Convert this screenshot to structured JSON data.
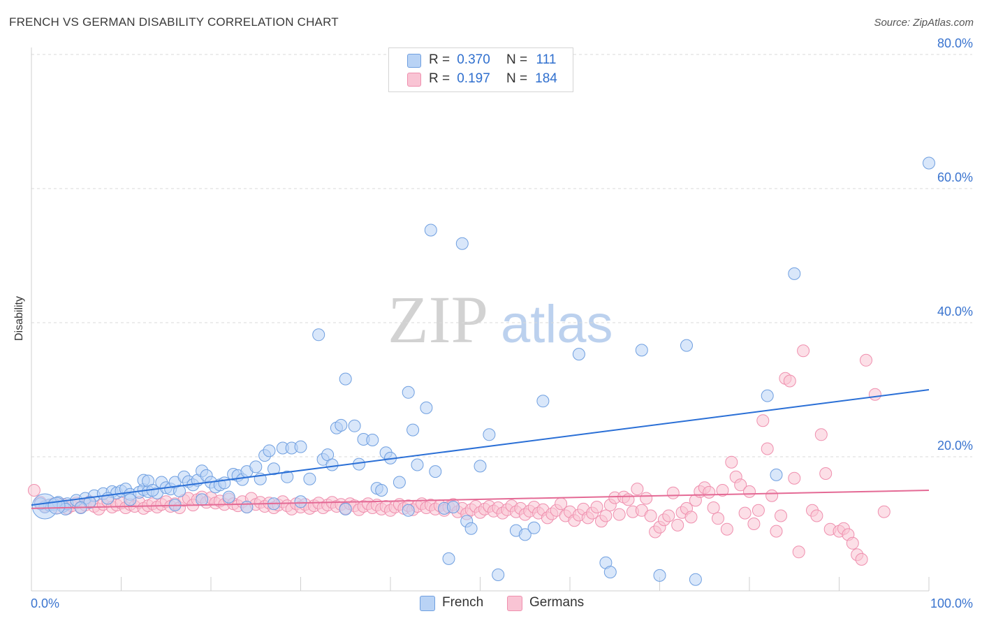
{
  "title": "FRENCH VS GERMAN DISABILITY CORRELATION CHART",
  "source": "Source: ZipAtlas.com",
  "watermark": {
    "zip": "ZIP",
    "atlas": "atlas"
  },
  "colors": {
    "french_fill": "#b9d3f5",
    "french_stroke": "#6f9fe0",
    "french_line": "#2a6fd6",
    "german_fill": "#f9c4d4",
    "german_stroke": "#ef8fae",
    "german_line": "#e46a95",
    "tick_label": "#3a74cf",
    "grid": "#d9d9d9"
  },
  "legend": {
    "r_label": "R =",
    "n_label": "N =",
    "items": [
      {
        "name": "French",
        "r": "0.370",
        "n": "111",
        "swatch": "#b9d3f5",
        "border": "#6f9fe0"
      },
      {
        "name": "Germans",
        "r": "0.197",
        "n": "184",
        "swatch": "#f9c4d4",
        "border": "#ef8fae"
      }
    ]
  },
  "chart_data": {
    "type": "scatter",
    "title": "FRENCH VS GERMAN DISABILITY CORRELATION CHART",
    "xlabel": "",
    "ylabel": "Disability",
    "xlim": [
      0,
      100
    ],
    "ylim": [
      0,
      80
    ],
    "x_tick_labels": [
      "0.0%",
      "100.0%"
    ],
    "y_ticks": [
      20,
      40,
      60,
      80
    ],
    "y_tick_labels": [
      "20.0%",
      "40.0%",
      "60.0%",
      "80.0%"
    ],
    "grid": "horizontal dashed",
    "legend_position": "top-center",
    "series": [
      {
        "name": "French",
        "r": 0.37,
        "n": 111,
        "trend": {
          "x": [
            0,
            100
          ],
          "y": [
            12.8,
            30.0
          ]
        },
        "points": [
          [
            1.5,
            12.5
          ],
          [
            2,
            12.8
          ],
          [
            2.5,
            12.9
          ],
          [
            3,
            13.2
          ],
          [
            3.5,
            12.6
          ],
          [
            4,
            13.0
          ],
          [
            5,
            13.5
          ],
          [
            6,
            13.8
          ],
          [
            7,
            14.2
          ],
          [
            8,
            14.5
          ],
          [
            9,
            14.8
          ],
          [
            9.5,
            14.6
          ],
          [
            10,
            14.9
          ],
          [
            10.5,
            15.2
          ],
          [
            11,
            14.4
          ],
          [
            12,
            14.7
          ],
          [
            12.5,
            15.1
          ],
          [
            13,
            14.8
          ],
          [
            14,
            14.6
          ],
          [
            12.5,
            16.5
          ],
          [
            13,
            16.4
          ],
          [
            13.5,
            15.0
          ],
          [
            14.5,
            16.2
          ],
          [
            15,
            15.4
          ],
          [
            15.5,
            15.2
          ],
          [
            16,
            16.2
          ],
          [
            16.5,
            14.9
          ],
          [
            17,
            17.0
          ],
          [
            17.5,
            16.3
          ],
          [
            18,
            15.8
          ],
          [
            18.5,
            16.5
          ],
          [
            19,
            17.9
          ],
          [
            19.5,
            17.2
          ],
          [
            20,
            16.2
          ],
          [
            20.5,
            15.5
          ],
          [
            21,
            15.8
          ],
          [
            21.5,
            16.1
          ],
          [
            22.5,
            17.4
          ],
          [
            23,
            17.2
          ],
          [
            23.5,
            16.6
          ],
          [
            24,
            17.8
          ],
          [
            25,
            18.5
          ],
          [
            25.5,
            16.7
          ],
          [
            26,
            20.2
          ],
          [
            26.5,
            20.9
          ],
          [
            27,
            18.2
          ],
          [
            28,
            21.3
          ],
          [
            28.5,
            17.0
          ],
          [
            29,
            21.3
          ],
          [
            30,
            21.5
          ],
          [
            31,
            16.7
          ],
          [
            32,
            38.2
          ],
          [
            32.5,
            19.6
          ],
          [
            33,
            20.3
          ],
          [
            33.5,
            18.8
          ],
          [
            34,
            24.3
          ],
          [
            34.5,
            24.7
          ],
          [
            35,
            31.6
          ],
          [
            36,
            24.6
          ],
          [
            36.5,
            18.9
          ],
          [
            37,
            22.6
          ],
          [
            38,
            22.5
          ],
          [
            38.5,
            15.3
          ],
          [
            39,
            15.0
          ],
          [
            39.5,
            20.6
          ],
          [
            40,
            19.8
          ],
          [
            41,
            16.2
          ],
          [
            42,
            29.6
          ],
          [
            42.5,
            24.0
          ],
          [
            43,
            18.8
          ],
          [
            44,
            27.3
          ],
          [
            44.5,
            53.8
          ],
          [
            45,
            17.8
          ],
          [
            46,
            12.3
          ],
          [
            47,
            12.5
          ],
          [
            48,
            51.8
          ],
          [
            48.5,
            10.4
          ],
          [
            49,
            9.3
          ],
          [
            50,
            18.6
          ],
          [
            51,
            23.3
          ],
          [
            52,
            2.4
          ],
          [
            54,
            9.0
          ],
          [
            55,
            8.4
          ],
          [
            56,
            9.4
          ],
          [
            57,
            28.3
          ],
          [
            61,
            35.3
          ],
          [
            64,
            4.2
          ],
          [
            64.5,
            2.8
          ],
          [
            68,
            35.9
          ],
          [
            70,
            2.3
          ],
          [
            73,
            36.6
          ],
          [
            74,
            1.7
          ],
          [
            82,
            29.1
          ],
          [
            83,
            17.3
          ],
          [
            85,
            47.3
          ],
          [
            100,
            63.8
          ],
          [
            42,
            12.0
          ],
          [
            46.5,
            4.8
          ],
          [
            30,
            13.3
          ],
          [
            35,
            12.2
          ],
          [
            27,
            13.0
          ],
          [
            22,
            14.0
          ],
          [
            24,
            12.5
          ],
          [
            19,
            13.6
          ],
          [
            16,
            12.8
          ],
          [
            11,
            13.6
          ],
          [
            6.5,
            13.2
          ],
          [
            8.5,
            13.8
          ],
          [
            3.8,
            12.2
          ],
          [
            5.5,
            12.4
          ],
          [
            1,
            13.0
          ]
        ]
      },
      {
        "name": "Germans",
        "r": 0.197,
        "n": 184,
        "trend": {
          "x": [
            0,
            100
          ],
          "y": [
            12.3,
            15.0
          ]
        },
        "points": [
          [
            0.3,
            15.0
          ],
          [
            1,
            13.2
          ],
          [
            1.5,
            12.6
          ],
          [
            2,
            12.8
          ],
          [
            2.5,
            13.0
          ],
          [
            3,
            12.4
          ],
          [
            3.5,
            12.9
          ],
          [
            4,
            12.3
          ],
          [
            4.5,
            12.7
          ],
          [
            5,
            13.1
          ],
          [
            5.5,
            12.5
          ],
          [
            6,
            12.8
          ],
          [
            6.5,
            13.3
          ],
          [
            7,
            12.6
          ],
          [
            7.5,
            12.2
          ],
          [
            8,
            12.9
          ],
          [
            8.5,
            13.4
          ],
          [
            9,
            12.5
          ],
          [
            9.5,
            12.8
          ],
          [
            10,
            13.1
          ],
          [
            10.5,
            12.4
          ],
          [
            11,
            12.9
          ],
          [
            11.5,
            12.6
          ],
          [
            12,
            13.2
          ],
          [
            12.5,
            12.3
          ],
          [
            13,
            12.7
          ],
          [
            13.5,
            13.0
          ],
          [
            14,
            12.5
          ],
          [
            14.5,
            12.9
          ],
          [
            15,
            13.3
          ],
          [
            15.5,
            12.6
          ],
          [
            16,
            13.0
          ],
          [
            16.5,
            12.4
          ],
          [
            17,
            13.5
          ],
          [
            17.5,
            13.8
          ],
          [
            18,
            12.8
          ],
          [
            18.5,
            13.6
          ],
          [
            19,
            14.0
          ],
          [
            19.5,
            13.2
          ],
          [
            20,
            13.9
          ],
          [
            20.5,
            13.1
          ],
          [
            21,
            13.4
          ],
          [
            21.5,
            12.9
          ],
          [
            22,
            13.7
          ],
          [
            22.5,
            13.0
          ],
          [
            23,
            12.7
          ],
          [
            23.5,
            13.3
          ],
          [
            24,
            12.5
          ],
          [
            24.5,
            13.8
          ],
          [
            25,
            12.9
          ],
          [
            25.5,
            13.2
          ],
          [
            26,
            12.6
          ],
          [
            26.5,
            13.1
          ],
          [
            27,
            12.4
          ],
          [
            27.5,
            12.8
          ],
          [
            28,
            13.3
          ],
          [
            28.5,
            12.7
          ],
          [
            29,
            12.2
          ],
          [
            29.5,
            13.0
          ],
          [
            30,
            12.5
          ],
          [
            30.5,
            12.9
          ],
          [
            31,
            12.3
          ],
          [
            31.5,
            12.7
          ],
          [
            32,
            13.1
          ],
          [
            32.5,
            12.4
          ],
          [
            33,
            12.8
          ],
          [
            33.5,
            13.2
          ],
          [
            34,
            12.6
          ],
          [
            34.5,
            12.9
          ],
          [
            35,
            12.3
          ],
          [
            35.5,
            13.0
          ],
          [
            36,
            12.7
          ],
          [
            36.5,
            12.1
          ],
          [
            37,
            12.6
          ],
          [
            37.5,
            13.0
          ],
          [
            38,
            12.4
          ],
          [
            38.5,
            12.8
          ],
          [
            39,
            12.2
          ],
          [
            39.5,
            12.6
          ],
          [
            40,
            12.0
          ],
          [
            40.5,
            12.5
          ],
          [
            41,
            12.9
          ],
          [
            41.5,
            12.3
          ],
          [
            42,
            12.7
          ],
          [
            42.5,
            12.1
          ],
          [
            43,
            12.6
          ],
          [
            43.5,
            13.0
          ],
          [
            44,
            12.4
          ],
          [
            44.5,
            12.8
          ],
          [
            45,
            12.2
          ],
          [
            45.5,
            12.7
          ],
          [
            46,
            12.0
          ],
          [
            46.5,
            12.5
          ],
          [
            47,
            12.9
          ],
          [
            47.5,
            11.8
          ],
          [
            48,
            12.3
          ],
          [
            48.5,
            11.5
          ],
          [
            49,
            12.1
          ],
          [
            49.5,
            12.6
          ],
          [
            50,
            11.7
          ],
          [
            50.5,
            12.2
          ],
          [
            51,
            12.6
          ],
          [
            51.5,
            11.9
          ],
          [
            52,
            12.4
          ],
          [
            52.5,
            11.6
          ],
          [
            53,
            12.1
          ],
          [
            53.5,
            12.7
          ],
          [
            54,
            11.8
          ],
          [
            54.5,
            12.3
          ],
          [
            55,
            11.4
          ],
          [
            55.5,
            11.9
          ],
          [
            56,
            12.5
          ],
          [
            56.5,
            11.6
          ],
          [
            57,
            12.1
          ],
          [
            57.5,
            10.9
          ],
          [
            58,
            11.5
          ],
          [
            58.5,
            12.0
          ],
          [
            59,
            13.0
          ],
          [
            59.5,
            11.2
          ],
          [
            60,
            11.8
          ],
          [
            60.5,
            10.5
          ],
          [
            61,
            11.3
          ],
          [
            61.5,
            12.2
          ],
          [
            62,
            10.9
          ],
          [
            62.5,
            11.6
          ],
          [
            63,
            12.5
          ],
          [
            63.5,
            10.4
          ],
          [
            64,
            11.2
          ],
          [
            64.5,
            12.8
          ],
          [
            65,
            13.9
          ],
          [
            65.5,
            11.4
          ],
          [
            66,
            14.0
          ],
          [
            66.5,
            13.6
          ],
          [
            67,
            11.8
          ],
          [
            67.5,
            15.2
          ],
          [
            68,
            12.0
          ],
          [
            68.5,
            13.8
          ],
          [
            69,
            11.2
          ],
          [
            69.5,
            8.8
          ],
          [
            70,
            9.5
          ],
          [
            70.5,
            10.6
          ],
          [
            71,
            11.2
          ],
          [
            71.5,
            14.6
          ],
          [
            72,
            9.8
          ],
          [
            72.5,
            11.7
          ],
          [
            73,
            12.3
          ],
          [
            73.5,
            11.0
          ],
          [
            74,
            13.5
          ],
          [
            74.5,
            14.8
          ],
          [
            75,
            15.4
          ],
          [
            75.5,
            14.7
          ],
          [
            76,
            12.4
          ],
          [
            76.5,
            10.8
          ],
          [
            77,
            15.0
          ],
          [
            77.5,
            9.2
          ],
          [
            78,
            19.2
          ],
          [
            78.5,
            17.0
          ],
          [
            79,
            15.8
          ],
          [
            79.5,
            11.6
          ],
          [
            80,
            14.8
          ],
          [
            80.5,
            10.0
          ],
          [
            81,
            12.0
          ],
          [
            81.5,
            25.4
          ],
          [
            82,
            21.2
          ],
          [
            82.5,
            14.2
          ],
          [
            83,
            8.9
          ],
          [
            83.5,
            11.2
          ],
          [
            84,
            31.7
          ],
          [
            84.5,
            31.3
          ],
          [
            85,
            16.8
          ],
          [
            85.5,
            5.8
          ],
          [
            86,
            35.8
          ],
          [
            87,
            12.0
          ],
          [
            87.5,
            11.2
          ],
          [
            88,
            23.3
          ],
          [
            88.5,
            17.5
          ],
          [
            89,
            9.2
          ],
          [
            90,
            8.9
          ],
          [
            90.5,
            9.3
          ],
          [
            91,
            8.4
          ],
          [
            91.5,
            7.1
          ],
          [
            92,
            5.4
          ],
          [
            92.5,
            4.7
          ],
          [
            93,
            34.4
          ],
          [
            94,
            29.3
          ],
          [
            95,
            11.8
          ]
        ]
      }
    ]
  }
}
